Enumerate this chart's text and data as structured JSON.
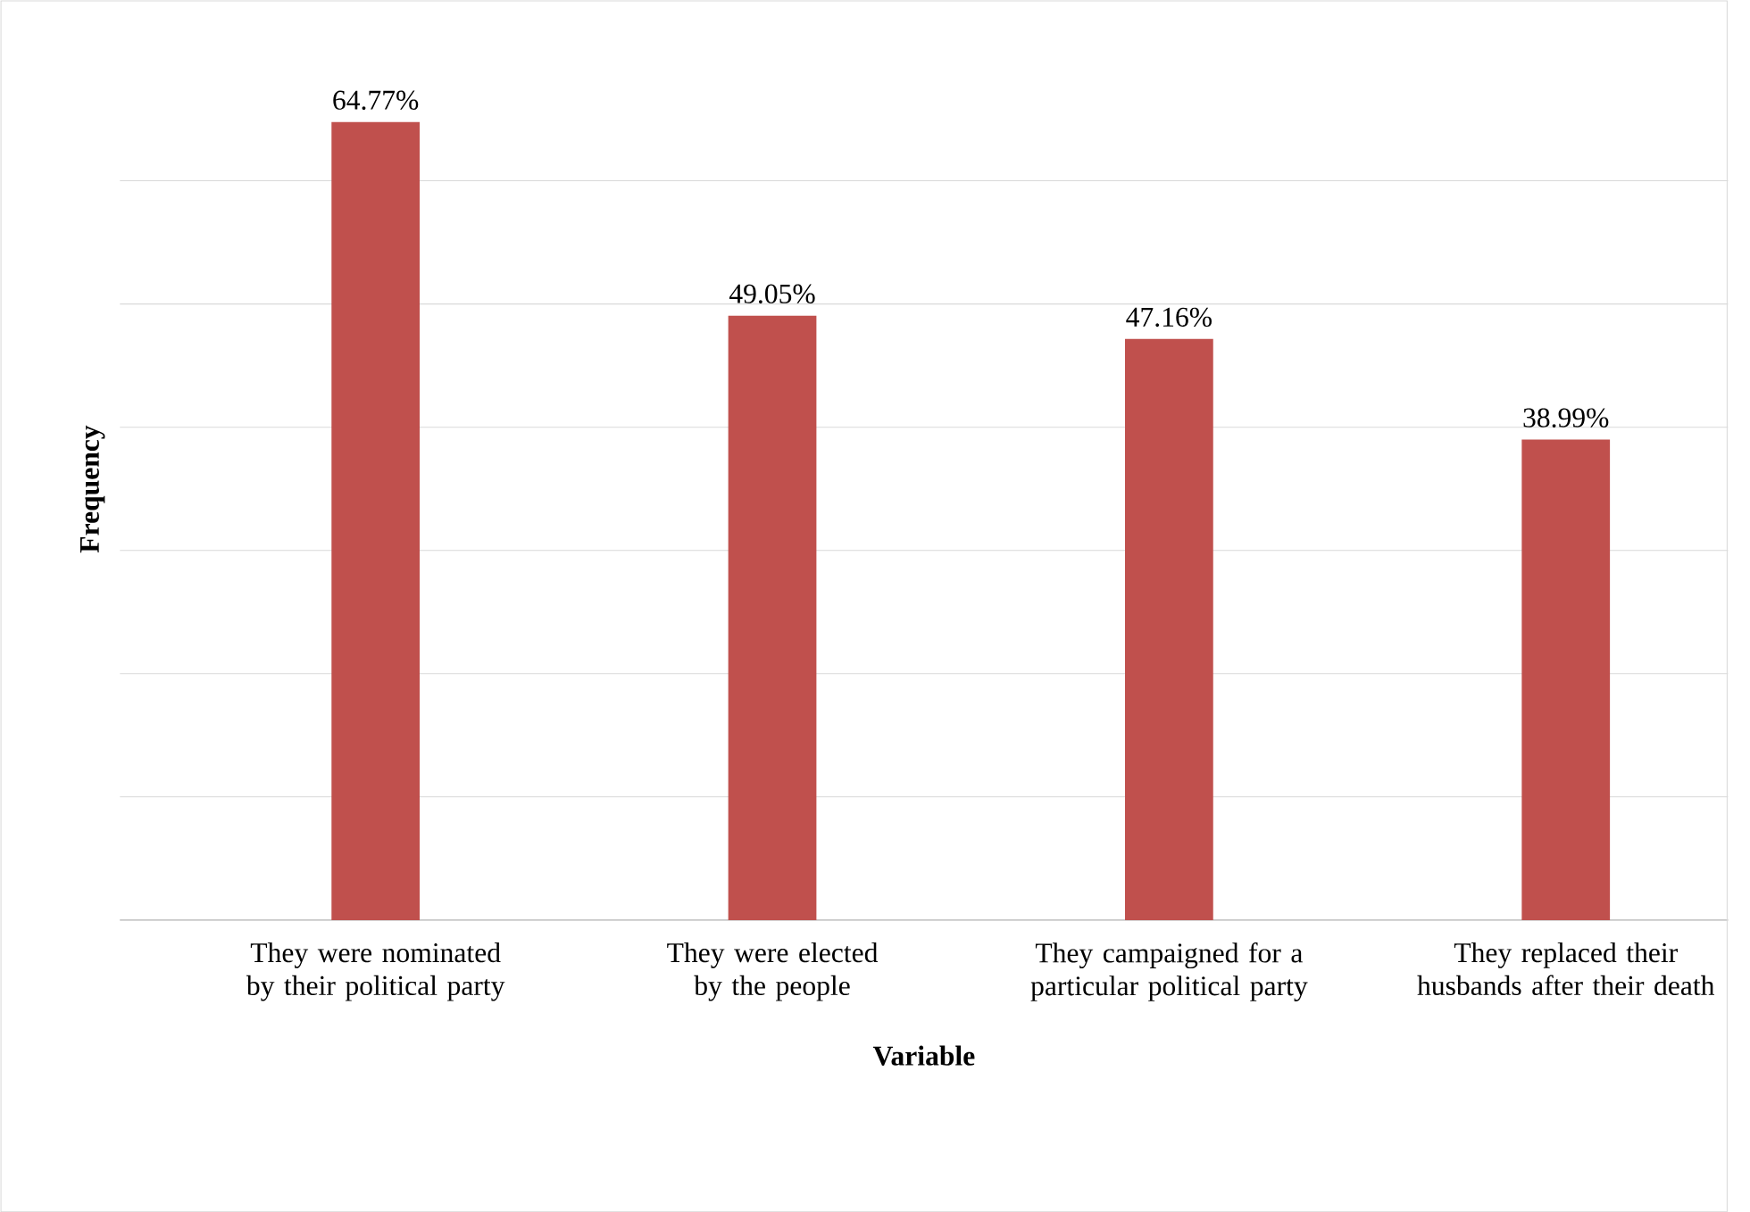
{
  "chart_data": {
    "type": "bar",
    "xlabel": "Variable",
    "ylabel": "Frequency",
    "categories": [
      "They were nominated by their political party",
      "They were elected by the people",
      "They campaigned for a particular political party",
      "They replaced their husbands after their death"
    ],
    "values": [
      64.77,
      49.05,
      47.16,
      38.99
    ],
    "value_labels": [
      "64.77%",
      "49.05%",
      "47.16%",
      "38.99%"
    ],
    "color": "#c0504d",
    "grid": "y",
    "tick_labels": "x"
  }
}
